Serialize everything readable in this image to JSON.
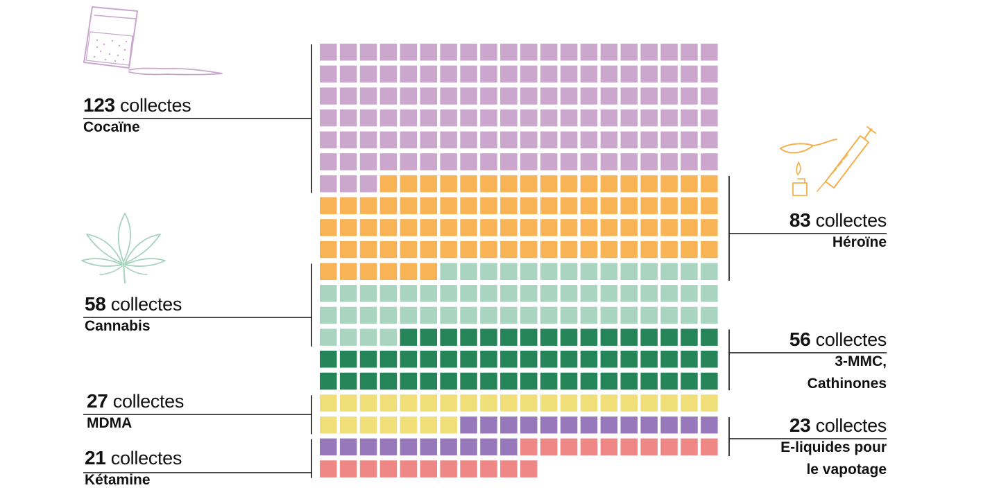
{
  "chart_data": {
    "type": "waffle",
    "columns": 20,
    "unit_label": "collectes",
    "series": [
      {
        "name": "Cocaïne",
        "value": 123,
        "color": "#cba7cd",
        "side": "left",
        "icon": "drug-bag-icon",
        "icon_color": "#c9a6cc"
      },
      {
        "name": "Héroïne",
        "value": 83,
        "color": "#f8b355",
        "side": "right",
        "icon": "syringe-spoon-icon",
        "icon_color": "#f4b04a"
      },
      {
        "name": "Cannabis",
        "value": 58,
        "color": "#a9d5c0",
        "side": "left",
        "icon": "cannabis-leaf-icon",
        "icon_color": "#a4d3bd"
      },
      {
        "name": "3-MMC, Cathinones",
        "name_lines": [
          "3-MMC,",
          "Cathinones"
        ],
        "value": 56,
        "color": "#268459",
        "side": "right"
      },
      {
        "name": "MDMA",
        "value": 27,
        "color": "#f0df79",
        "side": "left"
      },
      {
        "name": "E-liquides pour le vapotage",
        "name_lines": [
          "E-liquides pour",
          "le vapotage"
        ],
        "value": 23,
        "color": "#9779bb",
        "side": "right"
      },
      {
        "name": "Kétamine",
        "value": 21,
        "color": "#ee8785",
        "side": "left"
      }
    ]
  }
}
